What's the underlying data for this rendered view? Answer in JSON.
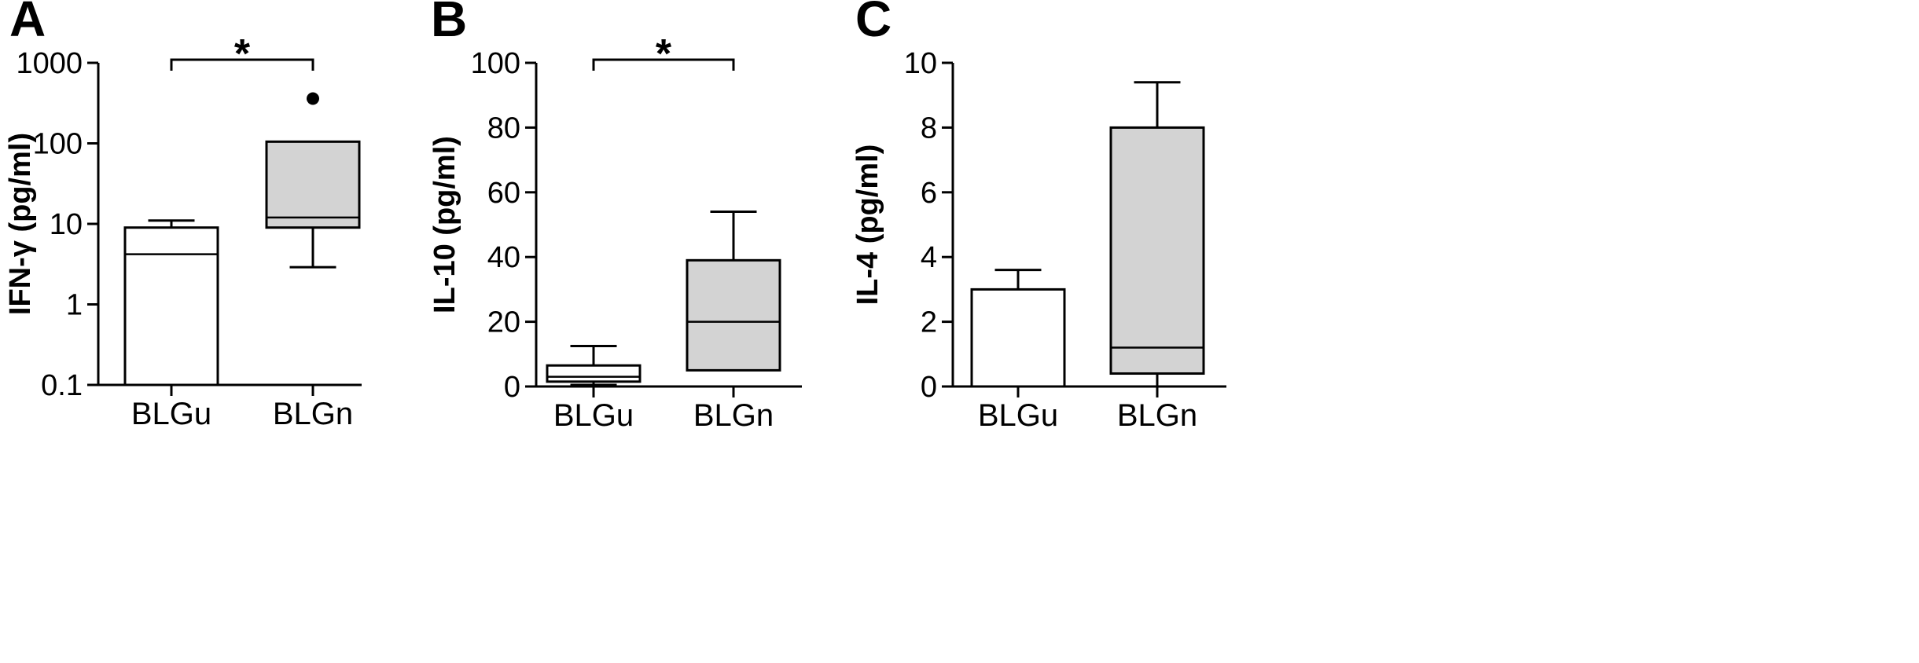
{
  "chart_data": [
    {
      "type": "box",
      "panel": "A",
      "ylabel": "IFN-γ (pg/ml)",
      "yscale": "log",
      "ylim": [
        0.1,
        1000
      ],
      "yticks": [
        0.1,
        1,
        10,
        100,
        1000
      ],
      "ytick_labels": [
        "0.1",
        "1",
        "10",
        "100",
        "1000"
      ],
      "categories": [
        "BLGu",
        "BLGn"
      ],
      "boxes": [
        {
          "name": "BLGu",
          "fill": "#ffffff",
          "whisker_low": 0.1,
          "q1": 0.1,
          "median": 4.2,
          "q3": 9,
          "whisker_high": 11,
          "outliers": []
        },
        {
          "name": "BLGn",
          "fill": "#d3d3d3",
          "whisker_low": 2.9,
          "q1": 9,
          "median": 12,
          "q3": 105,
          "whisker_high": 105,
          "outliers": [
            360
          ]
        }
      ],
      "significance": [
        {
          "between": [
            "BLGu",
            "BLGn"
          ],
          "label": "*"
        }
      ]
    },
    {
      "type": "box",
      "panel": "B",
      "ylabel": "IL-10 (pg/ml)",
      "yscale": "linear",
      "ylim": [
        0,
        100
      ],
      "yticks": [
        0,
        20,
        40,
        60,
        80,
        100
      ],
      "ytick_labels": [
        "0",
        "20",
        "40",
        "60",
        "80",
        "100"
      ],
      "categories": [
        "BLGu",
        "BLGn"
      ],
      "boxes": [
        {
          "name": "BLGu",
          "fill": "#ffffff",
          "whisker_low": 0.5,
          "q1": 1.5,
          "median": 3,
          "q3": 6.5,
          "whisker_high": 12.5,
          "outliers": []
        },
        {
          "name": "BLGn",
          "fill": "#d3d3d3",
          "whisker_low": 5,
          "q1": 5,
          "median": 20,
          "q3": 39,
          "whisker_high": 54,
          "outliers": []
        }
      ],
      "significance": [
        {
          "between": [
            "BLGu",
            "BLGn"
          ],
          "label": "*"
        }
      ]
    },
    {
      "type": "box",
      "panel": "C",
      "ylabel": "IL-4 (pg/ml)",
      "yscale": "linear",
      "ylim": [
        0,
        10
      ],
      "yticks": [
        0,
        2,
        4,
        6,
        8,
        10
      ],
      "ytick_labels": [
        "0",
        "2",
        "4",
        "6",
        "8",
        "10"
      ],
      "categories": [
        "BLGu",
        "BLGn"
      ],
      "boxes": [
        {
          "name": "BLGu",
          "fill": "#ffffff",
          "whisker_low": 0,
          "q1": 0,
          "median": 0,
          "q3": 3,
          "whisker_high": 3.6,
          "outliers": []
        },
        {
          "name": "BLGn",
          "fill": "#d3d3d3",
          "whisker_low": 0,
          "q1": 0.4,
          "median": 1.2,
          "q3": 8,
          "whisker_high": 9.4,
          "outliers": []
        }
      ],
      "significance": []
    }
  ]
}
